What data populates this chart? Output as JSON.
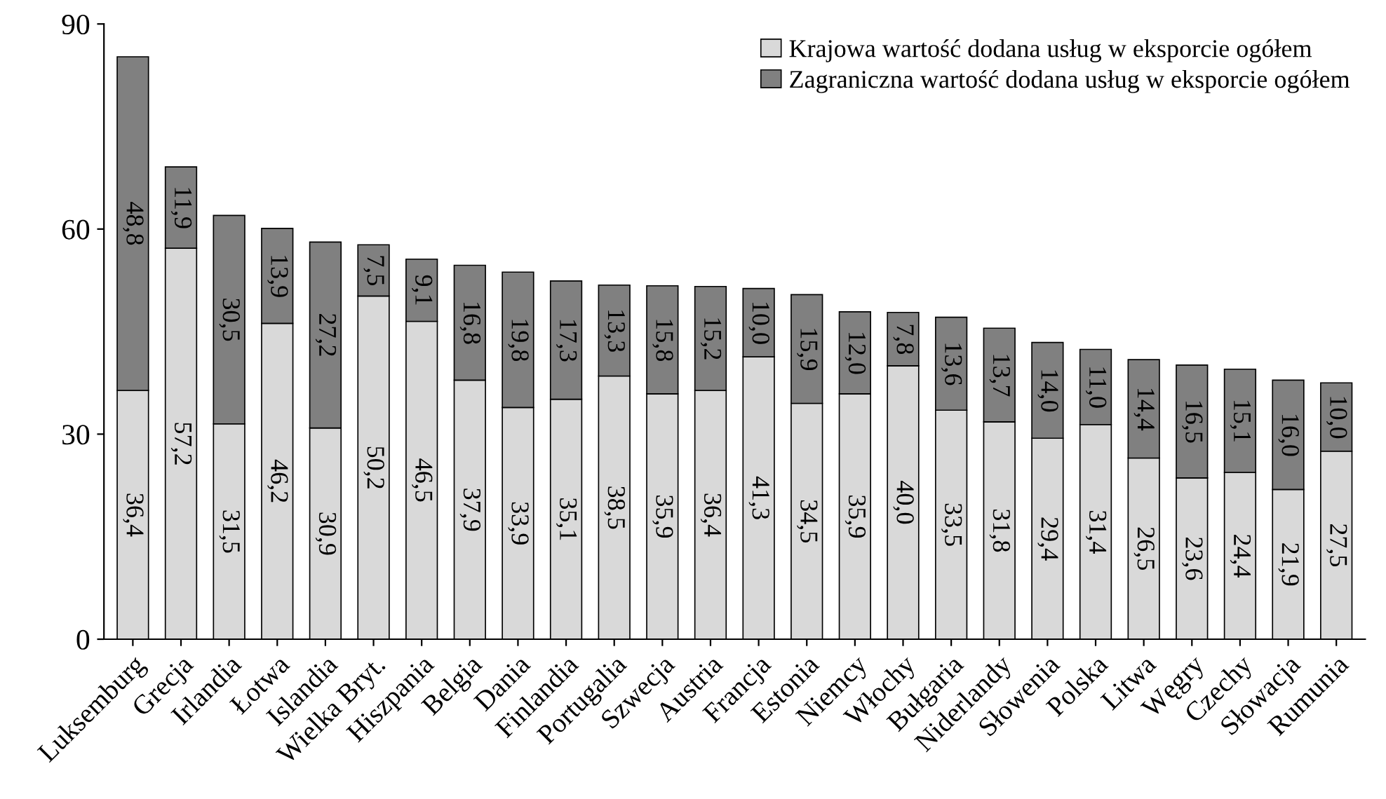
{
  "chart_data": {
    "type": "bar",
    "stacked": true,
    "categories": [
      "Luksemburg",
      "Grecja",
      "Irlandia",
      "Łotwa",
      "Islandia",
      "Wielka Bryt.",
      "Hiszpania",
      "Belgia",
      "Dania",
      "Finlandia",
      "Portugalia",
      "Szwecja",
      "Austria",
      "Francja",
      "Estonia",
      "Niemcy",
      "Włochy",
      "Bułgaria",
      "Niderlandy",
      "Słowenia",
      "Polska",
      "Litwa",
      "Węgry",
      "Czechy",
      "Słowacja",
      "Rumunia"
    ],
    "series": [
      {
        "name": "Krajowa wartość dodana usług w eksporcie ogółem",
        "color": "#d9d9d9",
        "values": [
          36.4,
          57.2,
          31.5,
          46.2,
          30.9,
          50.2,
          46.5,
          37.9,
          33.9,
          35.1,
          38.5,
          35.9,
          36.4,
          41.3,
          34.5,
          35.9,
          40.0,
          33.5,
          31.8,
          29.4,
          31.4,
          26.5,
          23.6,
          24.4,
          21.9,
          27.5
        ],
        "value_labels": [
          "36,4",
          "57,2",
          "31,5",
          "46,2",
          "30,9",
          "50,2",
          "46,5",
          "37,9",
          "33,9",
          "35,1",
          "38,5",
          "35,9",
          "36,4",
          "41,3",
          "34,5",
          "35,9",
          "40,0",
          "33,5",
          "31,8",
          "29,4",
          "31,4",
          "26,5",
          "23,6",
          "24,4",
          "21,9",
          "27,5"
        ]
      },
      {
        "name": "Zagraniczna wartość dodana usług w eksporcie ogółem",
        "color": "#808080",
        "values": [
          48.8,
          11.9,
          30.5,
          13.9,
          27.2,
          7.5,
          9.1,
          16.8,
          19.8,
          17.3,
          13.3,
          15.8,
          15.2,
          10.0,
          15.9,
          12.0,
          7.8,
          13.6,
          13.7,
          14.0,
          11.0,
          14.4,
          16.5,
          15.1,
          16.0,
          10.0
        ],
        "value_labels": [
          "48,8",
          "11,9",
          "30,5",
          "13,9",
          "27,2",
          "7,5",
          "9,1",
          "16,8",
          "19,8",
          "17,3",
          "13,3",
          "15,8",
          "15,2",
          "10,0",
          "15,9",
          "12,0",
          "7,8",
          "13,6",
          "13,7",
          "14,0",
          "11,0",
          "14,4",
          "16,5",
          "15,1",
          "16,0",
          "10,0"
        ]
      }
    ],
    "ylim": [
      0,
      90
    ],
    "yticks": [
      0,
      30,
      60,
      90
    ],
    "grid": false,
    "legend": "top right"
  }
}
